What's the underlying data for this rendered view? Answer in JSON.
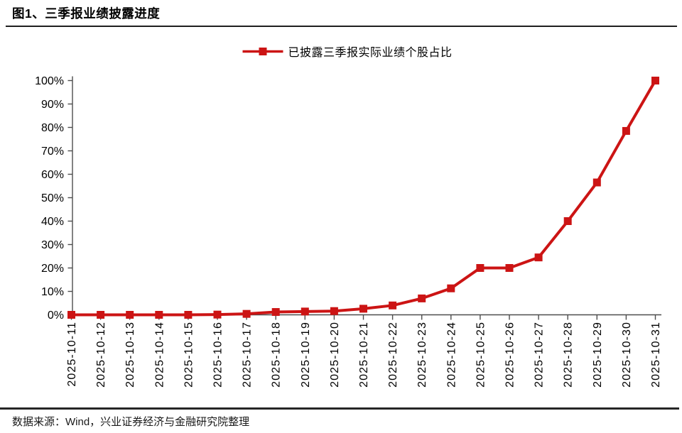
{
  "figure": {
    "number_label": "图1",
    "title": "图1、三季报业绩披露进度"
  },
  "footer": {
    "source": "数据来源：Wind，兴业证券经济与金融研究院整理"
  },
  "chart_data": {
    "type": "line",
    "title": "图1、三季报业绩披露进度",
    "xlabel": "",
    "ylabel": "",
    "grid": false,
    "legend_position": "top-center",
    "ylim": [
      0,
      100
    ],
    "yticks": [
      0,
      10,
      20,
      30,
      40,
      50,
      60,
      70,
      80,
      90,
      100
    ],
    "ytick_suffix": "%",
    "axis_color": "#4d4d4d",
    "categories": [
      "2025-10-11",
      "2025-10-12",
      "2025-10-13",
      "2025-10-14",
      "2025-10-15",
      "2025-10-16",
      "2025-10-17",
      "2025-10-18",
      "2025-10-19",
      "2025-10-20",
      "2025-10-21",
      "2025-10-22",
      "2025-10-23",
      "2025-10-24",
      "2025-10-25",
      "2025-10-26",
      "2025-10-27",
      "2025-10-28",
      "2025-10-29",
      "2025-10-30",
      "2025-10-31"
    ],
    "series": [
      {
        "name": "已披露三季报实际业绩个股占比",
        "color": "#CC1414",
        "marker": "square",
        "values": [
          0,
          0,
          0,
          0,
          0,
          0.1,
          0.4,
          1.2,
          1.4,
          1.6,
          2.6,
          4,
          7,
          11.3,
          20,
          20,
          24.5,
          40,
          56.5,
          78.5,
          100
        ]
      }
    ]
  }
}
